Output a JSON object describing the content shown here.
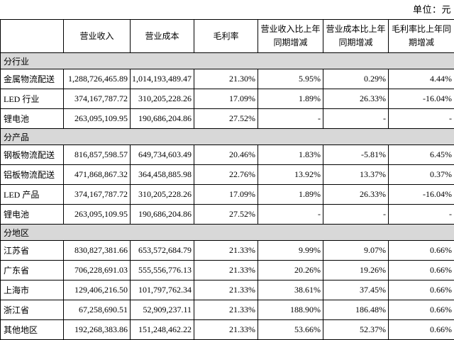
{
  "unit_label": "单位：元",
  "colors": {
    "section_row_bg": "#d8d8d8",
    "border": "#000000",
    "page_bg": "#ffffff"
  },
  "table": {
    "headers": [
      "",
      "营业收入",
      "营业成本",
      "毛利率",
      "营业收入比上年同期增减",
      "营业成本比上年同期增减",
      "毛利率比上年同期增减"
    ],
    "sections": [
      {
        "title": "分行业",
        "rows": [
          {
            "label": "金属物流配送",
            "values": [
              "1,288,726,465.89",
              "1,014,193,489.47",
              "21.30%",
              "5.95%",
              "0.29%",
              "4.44%"
            ]
          },
          {
            "label": "LED 行业",
            "values": [
              "374,167,787.72",
              "310,205,228.26",
              "17.09%",
              "1.89%",
              "26.33%",
              "-16.04%"
            ]
          },
          {
            "label": "锂电池",
            "values": [
              "263,095,109.95",
              "190,686,204.86",
              "27.52%",
              "-",
              "-",
              "-"
            ]
          }
        ]
      },
      {
        "title": "分产品",
        "rows": [
          {
            "label": "钢板物流配送",
            "values": [
              "816,857,598.57",
              "649,734,603.49",
              "20.46%",
              "1.83%",
              "-5.81%",
              "6.45%"
            ]
          },
          {
            "label": "铝板物流配送",
            "values": [
              "471,868,867.32",
              "364,458,885.98",
              "22.76%",
              "13.92%",
              "13.37%",
              "0.37%"
            ]
          },
          {
            "label": "LED 产品",
            "values": [
              "374,167,787.72",
              "310,205,228.26",
              "17.09%",
              "1.89%",
              "26.33%",
              "-16.04%"
            ]
          },
          {
            "label": "锂电池",
            "values": [
              "263,095,109.95",
              "190,686,204.86",
              "27.52%",
              "-",
              "-",
              "-"
            ]
          }
        ]
      },
      {
        "title": "分地区",
        "rows": [
          {
            "label": "江苏省",
            "values": [
              "830,827,381.66",
              "653,572,684.79",
              "21.33%",
              "9.99%",
              "9.07%",
              "0.66%"
            ]
          },
          {
            "label": "广东省",
            "values": [
              "706,228,691.03",
              "555,556,776.13",
              "21.33%",
              "20.26%",
              "19.26%",
              "0.66%"
            ]
          },
          {
            "label": "上海市",
            "values": [
              "129,406,216.50",
              "101,797,762.34",
              "21.33%",
              "38.61%",
              "37.45%",
              "0.66%"
            ]
          },
          {
            "label": "浙江省",
            "values": [
              "67,258,690.51",
              "52,909,237.11",
              "21.33%",
              "188.90%",
              "186.48%",
              "0.66%"
            ]
          },
          {
            "label": "其他地区",
            "values": [
              "192,268,383.86",
              "151,248,462.22",
              "21.33%",
              "53.66%",
              "52.37%",
              "0.66%"
            ]
          }
        ]
      }
    ]
  }
}
